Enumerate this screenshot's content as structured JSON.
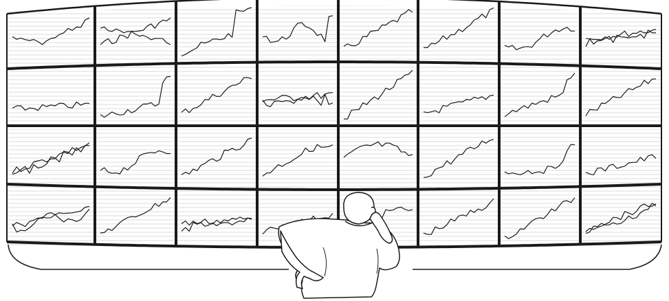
{
  "scene": {
    "subject": "trader-watching-stock-chart-wall",
    "style": "black-and-white line illustration",
    "colors": {
      "ink": "#1a1a1a",
      "paper": "#ffffff",
      "scanline": "#b8b8b8"
    },
    "wall": {
      "rows": 4,
      "columns": 8
    },
    "panel_trends": [
      [
        [
          "flat-dip-rise"
        ],
        [
          "cross-pair"
        ],
        [
          "rise-spike"
        ],
        [
          "spike-dip"
        ],
        [
          "steady-rise"
        ],
        [
          "jagged-rise"
        ],
        [
          "dip-rise"
        ],
        [
          "noisy-pair"
        ]
      ],
      [
        [
          "flat-noisy"
        ],
        [
          "spike-end"
        ],
        [
          "steady-rise"
        ],
        [
          "noisy-pair-flat"
        ],
        [
          "linear-rise"
        ],
        [
          "gentle-rise"
        ],
        [
          "spike-late"
        ],
        [
          "jagged-rise"
        ]
      ],
      [
        [
          "pair-rise"
        ],
        [
          "dip-rise"
        ],
        [
          "steady-rise"
        ],
        [
          "rise-flat"
        ],
        [
          "hill"
        ],
        [
          "jagged-rise"
        ],
        [
          "rise-late"
        ],
        [
          "gentle-rise"
        ]
      ],
      [
        [
          "pair-wave"
        ],
        [
          "jagged-rise"
        ],
        [
          "noisy-pair-flat"
        ],
        [
          "flat-rise"
        ],
        [
          "rise-flat"
        ],
        [
          "steady-rise"
        ],
        [
          "steep-rise"
        ],
        [
          "pair-rise"
        ]
      ]
    ]
  }
}
